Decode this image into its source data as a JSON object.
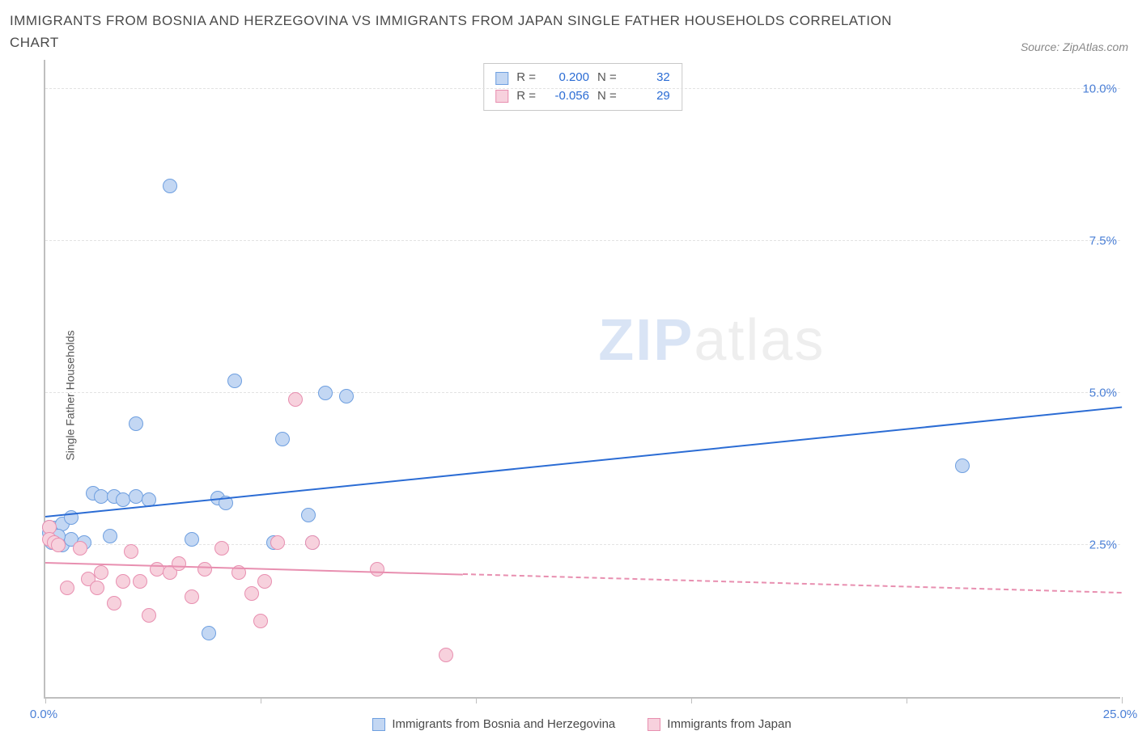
{
  "title": "IMMIGRANTS FROM BOSNIA AND HERZEGOVINA VS IMMIGRANTS FROM JAPAN SINGLE FATHER HOUSEHOLDS CORRELATION CHART",
  "source": "Source: ZipAtlas.com",
  "ylabel": "Single Father Households",
  "watermark_bold": "ZIP",
  "watermark_light": "atlas",
  "chart": {
    "type": "scatter",
    "xlim": [
      0,
      25
    ],
    "ylim": [
      0,
      10.5
    ],
    "x_ticks": [
      0,
      5,
      10,
      15,
      20,
      25
    ],
    "x_tick_labels": {
      "0": "0.0%",
      "25": "25.0%"
    },
    "y_gridlines": [
      2.5,
      5.0,
      7.5,
      10.0
    ],
    "y_tick_labels": [
      "2.5%",
      "5.0%",
      "7.5%",
      "10.0%"
    ],
    "background_color": "#ffffff",
    "grid_color": "#e3e3e3",
    "axis_color": "#bfbfbf",
    "tick_label_color": "#4a7fd6",
    "marker_radius": 9,
    "marker_border": 1.5,
    "series": [
      {
        "name": "Immigrants from Bosnia and Herzegovina",
        "fill": "#c3d7f3",
        "stroke": "#6e9fe0",
        "line_color": "#2b6cd4",
        "r": "0.200",
        "n": "32",
        "trend": {
          "x1": 0,
          "y1": 2.95,
          "x2": 25,
          "y2": 4.75,
          "solid_until_x": 25
        },
        "points": [
          [
            0.1,
            2.7
          ],
          [
            0.1,
            2.8
          ],
          [
            0.15,
            2.55
          ],
          [
            0.2,
            2.78
          ],
          [
            0.25,
            2.62
          ],
          [
            0.4,
            2.5
          ],
          [
            0.4,
            2.85
          ],
          [
            0.6,
            2.6
          ],
          [
            0.6,
            2.95
          ],
          [
            0.9,
            2.55
          ],
          [
            1.1,
            3.35
          ],
          [
            1.3,
            3.3
          ],
          [
            1.5,
            2.65
          ],
          [
            1.6,
            3.3
          ],
          [
            1.8,
            3.25
          ],
          [
            2.1,
            4.5
          ],
          [
            2.1,
            3.3
          ],
          [
            2.4,
            3.25
          ],
          [
            2.9,
            8.4
          ],
          [
            3.4,
            2.6
          ],
          [
            3.8,
            1.05
          ],
          [
            4.0,
            3.28
          ],
          [
            4.2,
            3.2
          ],
          [
            4.4,
            5.2
          ],
          [
            5.3,
            2.55
          ],
          [
            5.5,
            4.25
          ],
          [
            6.1,
            3.0
          ],
          [
            6.5,
            5.0
          ],
          [
            7.0,
            4.95
          ],
          [
            6.2,
            2.55
          ],
          [
            21.3,
            3.8
          ],
          [
            0.3,
            2.65
          ]
        ]
      },
      {
        "name": "Immigrants from Japan",
        "fill": "#f7d1dd",
        "stroke": "#e88fb0",
        "line_color": "#e88fb0",
        "r": "-0.056",
        "n": "29",
        "trend": {
          "x1": 0,
          "y1": 2.2,
          "x2": 25,
          "y2": 1.7,
          "solid_until_x": 9.7
        },
        "points": [
          [
            0.1,
            2.8
          ],
          [
            0.1,
            2.6
          ],
          [
            0.2,
            2.55
          ],
          [
            0.3,
            2.5
          ],
          [
            0.5,
            1.8
          ],
          [
            0.8,
            2.45
          ],
          [
            1.0,
            1.95
          ],
          [
            1.2,
            1.8
          ],
          [
            1.3,
            2.05
          ],
          [
            1.6,
            1.55
          ],
          [
            1.8,
            1.9
          ],
          [
            2.0,
            2.4
          ],
          [
            2.2,
            1.9
          ],
          [
            2.4,
            1.35
          ],
          [
            2.6,
            2.1
          ],
          [
            2.9,
            2.05
          ],
          [
            3.1,
            2.2
          ],
          [
            3.4,
            1.65
          ],
          [
            3.7,
            2.1
          ],
          [
            4.1,
            2.45
          ],
          [
            4.5,
            2.05
          ],
          [
            4.8,
            1.7
          ],
          [
            5.0,
            1.25
          ],
          [
            5.1,
            1.9
          ],
          [
            5.4,
            2.55
          ],
          [
            6.2,
            2.55
          ],
          [
            7.7,
            2.1
          ],
          [
            9.3,
            0.7
          ],
          [
            5.8,
            4.9
          ]
        ]
      }
    ]
  },
  "legend": {
    "series1": "Immigrants from Bosnia and Herzegovina",
    "series2": "Immigrants from Japan"
  }
}
